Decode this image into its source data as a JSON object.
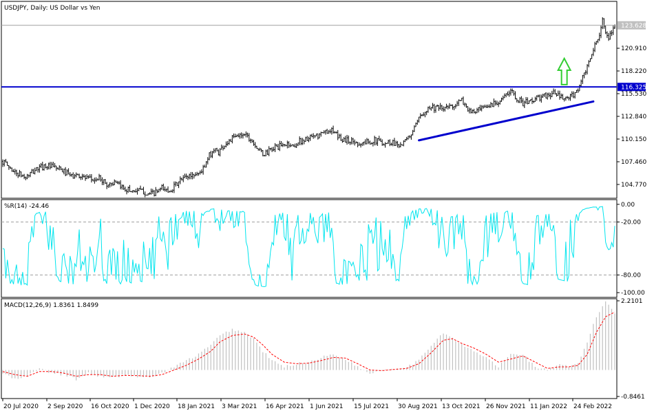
{
  "window": {
    "symbol_label": "USDJPY, Daily:  US Dollar vs Yen"
  },
  "colors": {
    "candle": "#000000",
    "horizontal_line": "#0000cd",
    "trend_line": "#0000cd",
    "arrow": "#32cd32",
    "wpr_line": "#00e5ee",
    "macd_hist": "#c0c0c0",
    "macd_signal": "#ff0000",
    "grid_dash": "#a0a0a0"
  },
  "chart_data": [
    {
      "type": "candlestick",
      "title": "USDJPY, Daily:  US Dollar vs Yen",
      "ylim": [
        103.3,
        126.3
      ],
      "y_ticks": [
        "120.910",
        "118.220",
        "115.530",
        "112.840",
        "110.150",
        "107.460",
        "104.770"
      ],
      "price_badges": [
        {
          "value": "123.628",
          "style": "current",
          "bg": "#c0c0c0",
          "line": "#c0c0c0"
        },
        {
          "value": "116.325",
          "style": "level",
          "bg": "#0000cd",
          "line": "#0000cd"
        }
      ],
      "x_labels": [
        "20 Jul 2020",
        "2 Sep 2020",
        "16 Oct 2020",
        "1 Dec 2020",
        "18 Jan 2021",
        "3 Mar 2021",
        "16 Apr 2021",
        "1 Jun 2021",
        "15 Jul 2021",
        "30 Aug 2021",
        "13 Oct 2021",
        "26 Nov 2021",
        "11 Jan 2022",
        "24 Feb 2022"
      ],
      "close_path": [
        [
          0,
          107.5
        ],
        [
          8,
          106.2
        ],
        [
          15,
          105.6
        ],
        [
          22,
          106.6
        ],
        [
          28,
          107.0
        ],
        [
          35,
          106.7
        ],
        [
          40,
          106.3
        ],
        [
          45,
          105.7
        ],
        [
          50,
          105.9
        ],
        [
          55,
          105.4
        ],
        [
          60,
          105.3
        ],
        [
          64,
          105.5
        ],
        [
          68,
          104.7
        ],
        [
          72,
          105.0
        ],
        [
          76,
          104.6
        ],
        [
          80,
          104.3
        ],
        [
          84,
          104.0
        ],
        [
          88,
          104.1
        ],
        [
          92,
          103.9
        ],
        [
          96,
          103.6
        ],
        [
          100,
          103.8
        ],
        [
          104,
          104.3
        ],
        [
          108,
          104.0
        ],
        [
          112,
          104.5
        ],
        [
          116,
          105.2
        ],
        [
          120,
          105.7
        ],
        [
          124,
          105.9
        ],
        [
          128,
          106.1
        ],
        [
          132,
          106.8
        ],
        [
          135,
          108.2
        ],
        [
          138,
          108.9
        ],
        [
          141,
          108.6
        ],
        [
          145,
          109.5
        ],
        [
          150,
          110.2
        ],
        [
          154,
          110.5
        ],
        [
          158,
          110.9
        ],
        [
          161,
          110.3
        ],
        [
          164,
          109.8
        ],
        [
          167,
          108.9
        ],
        [
          170,
          108.3
        ],
        [
          174,
          108.7
        ],
        [
          178,
          109.2
        ],
        [
          182,
          109.3
        ],
        [
          186,
          109.6
        ],
        [
          190,
          109.3
        ],
        [
          194,
          109.9
        ],
        [
          198,
          110.1
        ],
        [
          202,
          110.3
        ],
        [
          206,
          110.5
        ],
        [
          210,
          110.9
        ],
        [
          214,
          111.3
        ],
        [
          218,
          110.6
        ],
        [
          222,
          110.1
        ],
        [
          226,
          110.0
        ],
        [
          230,
          109.8
        ],
        [
          234,
          109.6
        ],
        [
          238,
          109.8
        ],
        [
          242,
          110.0
        ],
        [
          246,
          109.9
        ],
        [
          250,
          109.7
        ],
        [
          254,
          109.8
        ],
        [
          258,
          109.6
        ],
        [
          261,
          109.5
        ],
        [
          264,
          110.0
        ],
        [
          267,
          110.8
        ],
        [
          270,
          111.7
        ],
        [
          273,
          112.8
        ],
        [
          276,
          113.6
        ],
        [
          280,
          114.0
        ],
        [
          284,
          113.8
        ],
        [
          288,
          113.7
        ],
        [
          292,
          114.0
        ],
        [
          296,
          114.3
        ],
        [
          300,
          114.7
        ],
        [
          303,
          114.0
        ],
        [
          306,
          113.2
        ],
        [
          310,
          113.5
        ],
        [
          314,
          113.7
        ],
        [
          318,
          114.1
        ],
        [
          322,
          114.5
        ],
        [
          326,
          114.9
        ],
        [
          330,
          115.4
        ],
        [
          333,
          115.9
        ],
        [
          336,
          115.0
        ],
        [
          340,
          114.4
        ],
        [
          344,
          114.6
        ],
        [
          348,
          114.9
        ],
        [
          352,
          115.1
        ],
        [
          356,
          115.3
        ],
        [
          360,
          115.6
        ],
        [
          363,
          115.3
        ],
        [
          366,
          114.9
        ],
        [
          370,
          115.0
        ],
        [
          374,
          115.5
        ],
        [
          377,
          116.5
        ],
        [
          380,
          117.8
        ],
        [
          383,
          119.0
        ],
        [
          386,
          120.8
        ],
        [
          389,
          121.9
        ],
        [
          392,
          124.5
        ],
        [
          394,
          122.5
        ],
        [
          396,
          121.8
        ],
        [
          398,
          122.9
        ],
        [
          400,
          123.628
        ]
      ],
      "annotations": {
        "horizontal_level": 116.325,
        "trend_line": {
          "from": [
            272,
            110.0
          ],
          "to": [
            386,
            114.6
          ]
        },
        "arrow": {
          "x": 367,
          "y_base": 116.6,
          "y_tip": 119.7,
          "direction": "up"
        }
      }
    },
    {
      "type": "line",
      "title": "%R(14) -24.46",
      "ylim": [
        -103,
        3
      ],
      "y_ticks": [
        "0.00",
        "-20.00",
        "-80.00",
        "-100.00"
      ],
      "levels": [
        -20,
        -80
      ],
      "note": "Williams %R oscillator, highly oscillatory between 0 and -100"
    },
    {
      "type": "bar+line",
      "title": "MACD(12,26,9) 1.8361 1.8499",
      "ylim": [
        -0.8461,
        2.2101
      ],
      "y_ticks": [
        "2.2101",
        "-0.8461"
      ],
      "macd_points": [
        [
          0,
          -0.1
        ],
        [
          8,
          -0.3
        ],
        [
          16,
          -0.2
        ],
        [
          24,
          0.05
        ],
        [
          32,
          -0.1
        ],
        [
          40,
          -0.15
        ],
        [
          48,
          -0.3
        ],
        [
          56,
          -0.1
        ],
        [
          64,
          -0.2
        ],
        [
          72,
          -0.25
        ],
        [
          80,
          -0.15
        ],
        [
          88,
          -0.2
        ],
        [
          96,
          -0.25
        ],
        [
          104,
          -0.1
        ],
        [
          112,
          0.1
        ],
        [
          120,
          0.3
        ],
        [
          128,
          0.5
        ],
        [
          136,
          0.8
        ],
        [
          142,
          1.1
        ],
        [
          150,
          1.3
        ],
        [
          158,
          1.2
        ],
        [
          164,
          1.0
        ],
        [
          170,
          0.6
        ],
        [
          176,
          0.3
        ],
        [
          184,
          0.1
        ],
        [
          192,
          0.2
        ],
        [
          200,
          0.25
        ],
        [
          208,
          0.4
        ],
        [
          216,
          0.5
        ],
        [
          224,
          0.35
        ],
        [
          232,
          0.1
        ],
        [
          240,
          -0.1
        ],
        [
          248,
          0.0
        ],
        [
          256,
          0.05
        ],
        [
          264,
          0.1
        ],
        [
          272,
          0.3
        ],
        [
          280,
          0.8
        ],
        [
          288,
          1.2
        ],
        [
          294,
          1.0
        ],
        [
          300,
          0.8
        ],
        [
          308,
          0.6
        ],
        [
          316,
          0.4
        ],
        [
          324,
          0.1
        ],
        [
          332,
          0.5
        ],
        [
          340,
          0.5
        ],
        [
          348,
          0.1
        ],
        [
          356,
          0.0
        ],
        [
          364,
          0.15
        ],
        [
          370,
          0.1
        ],
        [
          376,
          0.2
        ],
        [
          382,
          0.9
        ],
        [
          388,
          1.7
        ],
        [
          394,
          2.2
        ],
        [
          400,
          1.8361
        ]
      ],
      "signal_points": [
        [
          0,
          -0.05
        ],
        [
          8,
          -0.15
        ],
        [
          16,
          -0.2
        ],
        [
          24,
          -0.05
        ],
        [
          32,
          -0.05
        ],
        [
          40,
          -0.1
        ],
        [
          48,
          -0.2
        ],
        [
          56,
          -0.15
        ],
        [
          64,
          -0.15
        ],
        [
          72,
          -0.2
        ],
        [
          80,
          -0.17
        ],
        [
          88,
          -0.18
        ],
        [
          96,
          -0.2
        ],
        [
          104,
          -0.15
        ],
        [
          112,
          0.0
        ],
        [
          120,
          0.15
        ],
        [
          128,
          0.35
        ],
        [
          136,
          0.6
        ],
        [
          142,
          0.9
        ],
        [
          150,
          1.1
        ],
        [
          158,
          1.15
        ],
        [
          164,
          1.05
        ],
        [
          170,
          0.8
        ],
        [
          176,
          0.5
        ],
        [
          184,
          0.25
        ],
        [
          192,
          0.2
        ],
        [
          200,
          0.22
        ],
        [
          208,
          0.3
        ],
        [
          216,
          0.4
        ],
        [
          224,
          0.38
        ],
        [
          232,
          0.2
        ],
        [
          240,
          0.0
        ],
        [
          248,
          -0.02
        ],
        [
          256,
          0.02
        ],
        [
          264,
          0.05
        ],
        [
          272,
          0.2
        ],
        [
          280,
          0.55
        ],
        [
          288,
          0.95
        ],
        [
          294,
          1.0
        ],
        [
          300,
          0.85
        ],
        [
          308,
          0.7
        ],
        [
          316,
          0.5
        ],
        [
          324,
          0.25
        ],
        [
          332,
          0.35
        ],
        [
          340,
          0.45
        ],
        [
          348,
          0.25
        ],
        [
          356,
          0.05
        ],
        [
          364,
          0.1
        ],
        [
          370,
          0.1
        ],
        [
          376,
          0.15
        ],
        [
          382,
          0.5
        ],
        [
          388,
          1.2
        ],
        [
          394,
          1.7
        ],
        [
          400,
          1.8499
        ]
      ]
    }
  ]
}
